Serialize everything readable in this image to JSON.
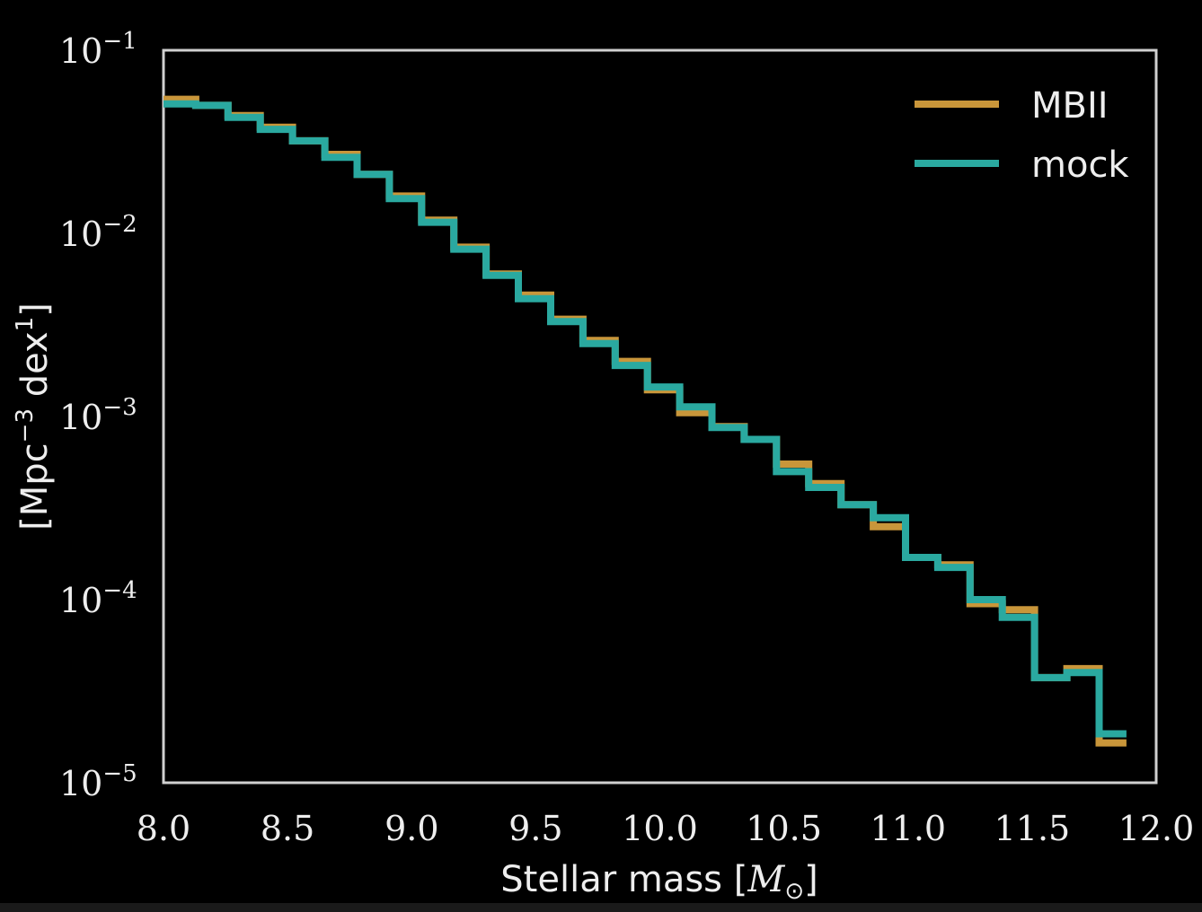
{
  "chart_data": {
    "type": "line",
    "step": true,
    "xlabel": "Stellar mass [",
    "xlabel_symbol": "M",
    "xlabel_sub": "⊙",
    "xlabel_close": "]",
    "ylabel": "[Mpc",
    "ylabel_sup": "−3",
    "ylabel_mid": " dex",
    "ylabel_sup2": "1",
    "ylabel_close": "]",
    "xlim": [
      8.0,
      12.0
    ],
    "ylim": [
      1e-05,
      0.1
    ],
    "yscale": "log",
    "xticks": [
      "8.0",
      "8.5",
      "9.0",
      "9.5",
      "10.0",
      "10.5",
      "11.0",
      "11.5",
      "12.0"
    ],
    "yticks": [
      {
        "base": "10",
        "exp": "−1",
        "value": 0.1
      },
      {
        "base": "10",
        "exp": "−2",
        "value": 0.01
      },
      {
        "base": "10",
        "exp": "−3",
        "value": 0.001
      },
      {
        "base": "10",
        "exp": "−4",
        "value": 0.0001
      },
      {
        "base": "10",
        "exp": "−5",
        "value": 1e-05
      }
    ],
    "grid": false,
    "legend": "top-right",
    "edges": [
      8.0,
      8.13,
      8.26,
      8.39,
      8.52,
      8.65,
      8.78,
      8.91,
      9.04,
      9.17,
      9.3,
      9.43,
      9.56,
      9.69,
      9.82,
      9.95,
      10.08,
      10.21,
      10.34,
      10.47,
      10.6,
      10.73,
      10.86,
      10.99,
      11.12,
      11.25,
      11.38,
      11.51,
      11.64,
      11.77,
      11.88
    ],
    "series": [
      {
        "name": "MBII",
        "color": "#c9963a",
        "values": [
          0.054,
          0.05,
          0.044,
          0.038,
          0.032,
          0.027,
          0.021,
          0.016,
          0.0118,
          0.0084,
          0.006,
          0.0046,
          0.0034,
          0.0026,
          0.002,
          0.0014,
          0.00105,
          0.00088,
          0.00075,
          0.00055,
          0.00043,
          0.00033,
          0.00025,
          0.00017,
          0.000155,
          9.5e-05,
          8.8e-05,
          3.75e-05,
          4.2e-05,
          1.65e-05
        ]
      },
      {
        "name": "mock",
        "color": "#2aa9a0",
        "values": [
          0.051,
          0.05,
          0.043,
          0.037,
          0.032,
          0.026,
          0.021,
          0.0155,
          0.0115,
          0.0082,
          0.0059,
          0.0044,
          0.0033,
          0.0025,
          0.0019,
          0.00145,
          0.00113,
          0.00087,
          0.00075,
          0.0005,
          0.00041,
          0.00033,
          0.00028,
          0.00017,
          0.00015,
          0.0001,
          8e-05,
          3.75e-05,
          4e-05,
          1.85e-05
        ]
      }
    ]
  }
}
